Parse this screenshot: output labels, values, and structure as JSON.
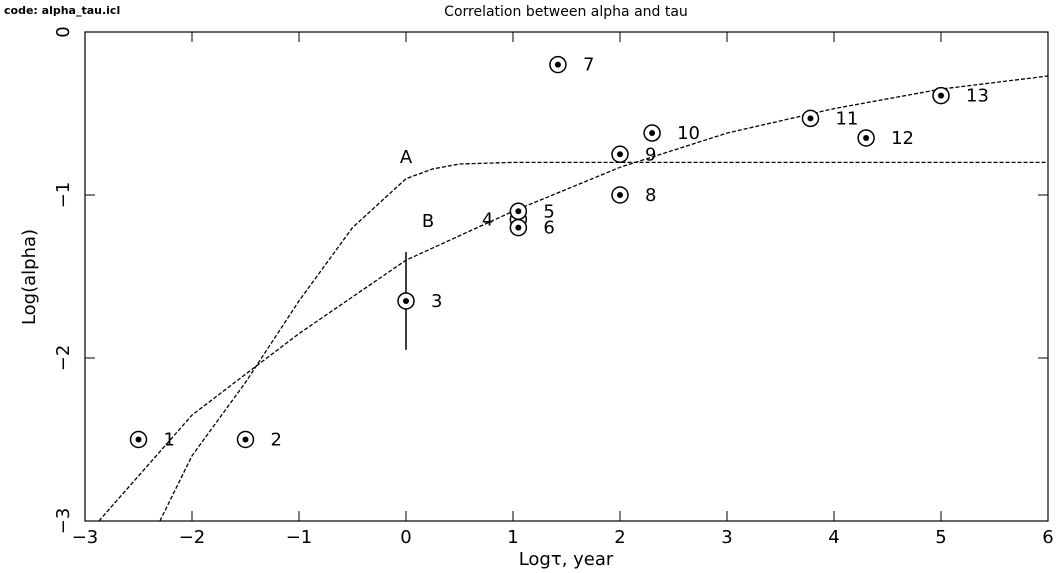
{
  "chart_data": {
    "type": "scatter",
    "code_label": "code: alpha_tau.icl",
    "title": "Correlation between alpha and tau",
    "x_label": "Logτ, year",
    "y_label": "Log(alpha)",
    "xlim": [
      -3,
      6
    ],
    "ylim": [
      -3,
      0
    ],
    "xticks": [
      {
        "value": -3,
        "label": "−3"
      },
      {
        "value": -2,
        "label": "−2"
      },
      {
        "value": -1,
        "label": "−1"
      },
      0,
      1,
      2,
      3,
      4,
      5,
      6
    ],
    "yticks": [
      {
        "value": -3,
        "label": "−3"
      },
      {
        "value": -2,
        "label": "−2"
      },
      {
        "value": -1,
        "label": "−1"
      },
      0
    ],
    "color": "#000000",
    "points": {
      "x": [
        -2.5,
        -1.5,
        0,
        1.05,
        1.05,
        1.05,
        1.42,
        2,
        2,
        2.3,
        3.78,
        4.3,
        5
      ],
      "y": [
        -2.5,
        -2.5,
        -1.65,
        -1.15,
        -1.1,
        -1.2,
        -0.2,
        -1.0,
        -0.75,
        -0.62,
        -0.53,
        -0.65,
        -0.39
      ],
      "errors": [
        null,
        null,
        0.3,
        null,
        null,
        null,
        null,
        null,
        null,
        null,
        null,
        null,
        null
      ],
      "labels": [
        "1",
        "2",
        "3",
        "4",
        "5",
        "6",
        "7",
        "8",
        "9",
        "10",
        "11",
        "12",
        "13"
      ]
    },
    "curves": [
      {
        "name": "A",
        "x": [
          -2.3,
          -2,
          -1.5,
          -1,
          -0.5,
          0,
          0.25,
          0.5,
          1,
          6
        ],
        "y": [
          -3,
          -2.6,
          -2.15,
          -1.65,
          -1.2,
          -0.9,
          -0.84,
          -0.81,
          -0.8,
          -0.8
        ]
      },
      {
        "name": "B",
        "x": [
          -2.87,
          -2,
          -1.4,
          -1,
          0,
          1,
          2,
          3,
          4,
          5,
          6
        ],
        "y": [
          -3,
          -2.35,
          -2.05,
          -1.85,
          -1.4,
          -1.1,
          -0.83,
          -0.62,
          -0.47,
          -0.35,
          -0.27
        ]
      }
    ]
  }
}
